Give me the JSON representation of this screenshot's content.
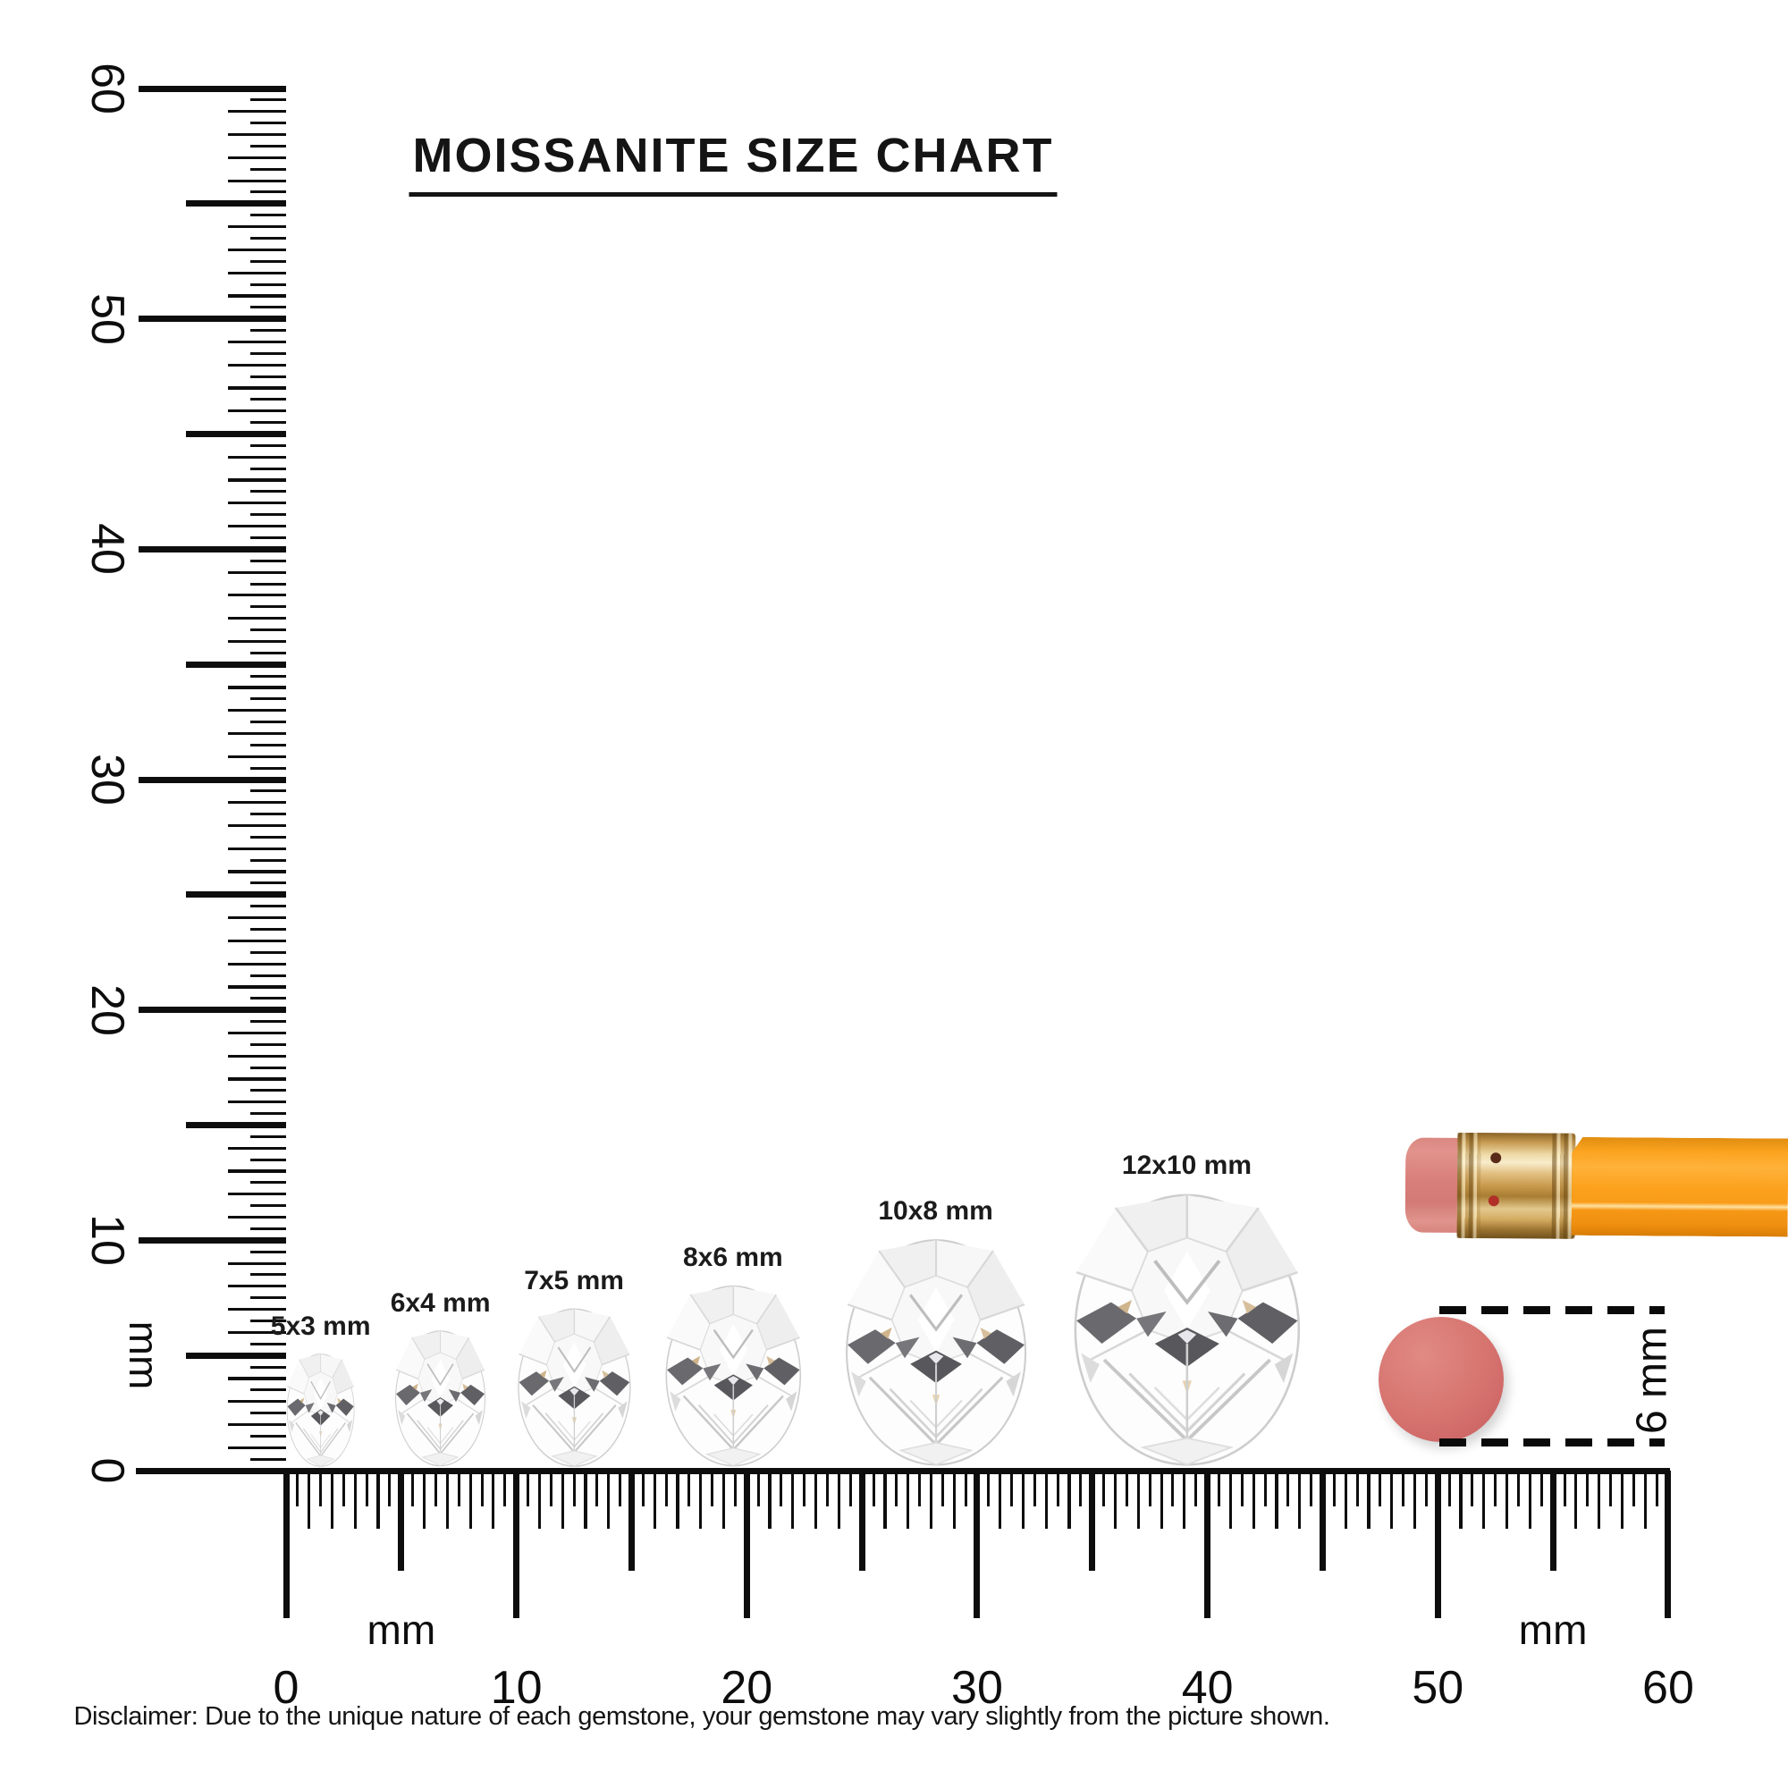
{
  "title": "MOISSANITE SIZE CHART",
  "disclaimer": "Disclaimer: Due to the unique nature of each gemstone, your gemstone may vary slightly from the picture shown.",
  "rulers": {
    "vertical": {
      "unit_label": "mm",
      "tick_labels": [
        "0",
        "10",
        "20",
        "30",
        "40",
        "50",
        "60"
      ],
      "range_mm": [
        0,
        60
      ]
    },
    "horizontal": {
      "unit_label_left": "mm",
      "unit_label_right": "mm",
      "tick_labels": [
        "0",
        "10",
        "20",
        "30",
        "40",
        "50",
        "60"
      ],
      "range_mm": [
        0,
        60
      ]
    }
  },
  "gems": [
    {
      "label": "5x3 mm",
      "width_mm": 3,
      "length_mm": 5,
      "position_mm": 1.5
    },
    {
      "label": "6x4 mm",
      "width_mm": 4,
      "length_mm": 6,
      "position_mm": 6.7
    },
    {
      "label": "7x5 mm",
      "width_mm": 5,
      "length_mm": 7,
      "position_mm": 12.5
    },
    {
      "label": "8x6 mm",
      "width_mm": 6,
      "length_mm": 8,
      "position_mm": 19.4
    },
    {
      "label": "10x8 mm",
      "width_mm": 8,
      "length_mm": 10,
      "position_mm": 28.2
    },
    {
      "label": "12x10 mm",
      "width_mm": 10,
      "length_mm": 12,
      "position_mm": 39.1
    }
  ],
  "eraser_comparison": {
    "label": "6 mm",
    "diameter_mm": 6
  },
  "colors": {
    "ink": "#0d0d0d",
    "pencil_body": "#f9a11b",
    "pencil_ferrule": "#cfa558",
    "pencil_eraser": "#d87f7a",
    "eraser_dot": "#d6736f",
    "gem_dark_facet": "#606064"
  }
}
